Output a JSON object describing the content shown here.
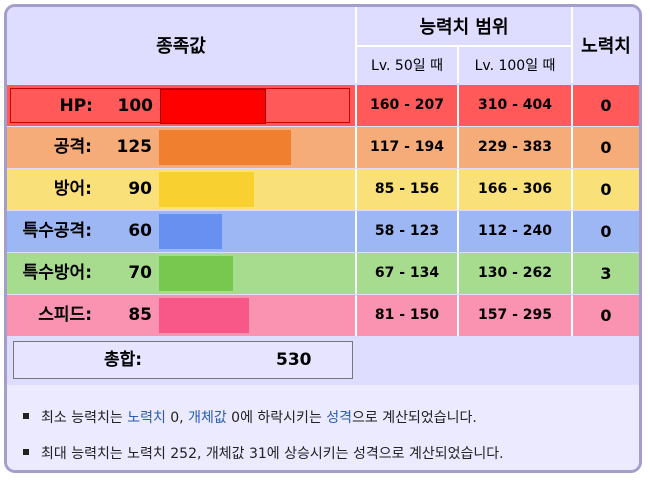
{
  "header": {
    "base_stats": "종족값",
    "stat_range": "능력치 범위",
    "lv50": "Lv. 50일 때",
    "lv100": "Lv. 100일 때",
    "ev_yield": "노력치"
  },
  "stats": [
    {
      "name": "HP:",
      "value": 100,
      "range50": "160 - 207",
      "range100": "310 - 404",
      "ev": "0",
      "row_color": "#ff5959",
      "bar_color": "#ff0000",
      "bar_border": "#cc0000"
    },
    {
      "name": "공격:",
      "value": 125,
      "range50": "117 - 194",
      "range100": "229 - 383",
      "ev": "0",
      "row_color": "#f5ac78",
      "bar_color": "#f08030",
      "bar_border": "#f08030"
    },
    {
      "name": "방어:",
      "value": 90,
      "range50": "85 - 156",
      "range100": "166 - 306",
      "ev": "0",
      "row_color": "#fae078",
      "bar_color": "#f8d030",
      "bar_border": "#f8d030"
    },
    {
      "name": "특수공격:",
      "value": 60,
      "range50": "58 - 123",
      "range100": "112 - 240",
      "ev": "0",
      "row_color": "#9db7f5",
      "bar_color": "#6890f0",
      "bar_border": "#6890f0"
    },
    {
      "name": "특수방어:",
      "value": 70,
      "range50": "67 - 134",
      "range100": "130 - 262",
      "ev": "3",
      "row_color": "#a7db8d",
      "bar_color": "#78c850",
      "bar_border": "#78c850"
    },
    {
      "name": "스피드:",
      "value": 85,
      "range50": "81 - 150",
      "range100": "157 - 295",
      "ev": "0",
      "row_color": "#fa92b2",
      "bar_color": "#f85888",
      "bar_border": "#f85888"
    }
  ],
  "total": {
    "label": "총합:",
    "value": "530"
  },
  "notes": {
    "min": {
      "p1": "최소 능력치는 ",
      "l1": "노력치",
      "p2": " 0, ",
      "l2": "개체값",
      "p3": " 0에 하락시키는 ",
      "l3": "성격",
      "p4": "으로 계산되었습니다."
    },
    "max": "최대 능력치는 노력치 252, 개체값 31에 상승시키는 성격으로 계산되었습니다."
  },
  "bar_scale_max": 255
}
